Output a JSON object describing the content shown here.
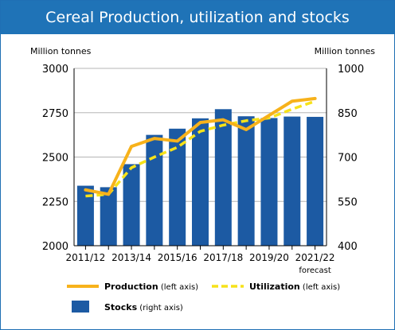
{
  "title": "Cereal Production, utilization and stocks",
  "colors": {
    "header": "#1f73b7",
    "bars": "#1c5aa3",
    "production": "#f7b21b",
    "utilization": "#f6e21a",
    "grid": "#b5b5b5",
    "axis": "#000000"
  },
  "chart_data": {
    "type": "bar",
    "title": "Cereal Production, utilization and stocks",
    "y_left_label": "Million tonnes",
    "y_right_label": "Million tonnes",
    "y_left_lim": [
      2000,
      3000
    ],
    "y_right_lim": [
      400,
      1000
    ],
    "y_left_ticks": [
      "3000",
      "2750",
      "2500",
      "2250",
      "2000"
    ],
    "y_right_ticks": [
      "1000",
      "850",
      "700",
      "550",
      "400"
    ],
    "grid": true,
    "categories": [
      "2011/12",
      "2012/13",
      "2013/14",
      "2014/15",
      "2015/16",
      "2016/17",
      "2017/18",
      "2018/19",
      "2019/20",
      "2020/21",
      "2021/22"
    ],
    "x_tick_labels": [
      "2011/12",
      "",
      "2013/14",
      "",
      "2015/16",
      "",
      "2017/18",
      "",
      "2019/20",
      "",
      "2021/22"
    ],
    "x_note": "forecast",
    "series": [
      {
        "name": "Stocks (right axis)",
        "type": "bar",
        "axis": "right",
        "values": [
          603,
          598,
          676,
          775,
          796,
          831,
          862,
          838,
          832,
          837,
          836
        ]
      },
      {
        "name": "Production (left axis)",
        "type": "line",
        "axis": "left",
        "values": [
          2315,
          2290,
          2560,
          2605,
          2590,
          2695,
          2710,
          2655,
          2735,
          2815,
          2830
        ]
      },
      {
        "name": "Utilization (left axis)",
        "type": "line-dashed",
        "axis": "left",
        "values": [
          2280,
          2290,
          2440,
          2500,
          2555,
          2645,
          2680,
          2705,
          2720,
          2770,
          2815
        ]
      }
    ],
    "legend": [
      {
        "label": "Production",
        "note": "(left axis)"
      },
      {
        "label": "Utilization",
        "note": "(left axis)"
      },
      {
        "label": "Stocks",
        "note": "(right axis)"
      }
    ],
    "legend_position": "bottom"
  }
}
